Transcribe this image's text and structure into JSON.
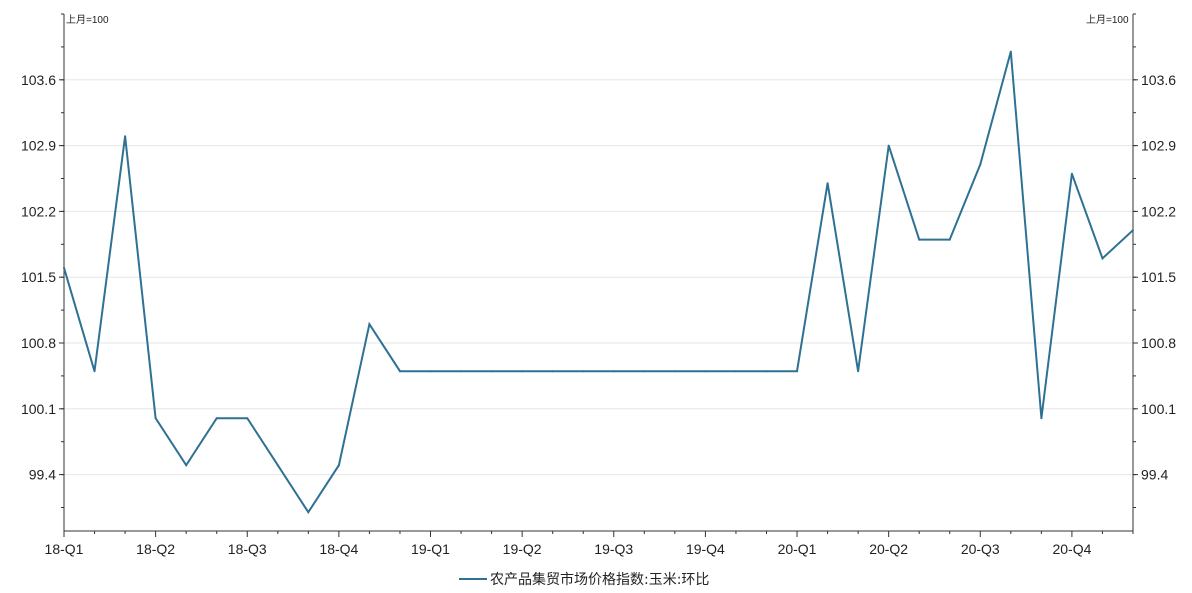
{
  "chart_data": {
    "type": "line",
    "unit_left": "上月=100",
    "unit_right": "上月=100",
    "x_tick_labels": [
      "18-Q1",
      "18-Q2",
      "18-Q3",
      "18-Q4",
      "19-Q1",
      "19-Q2",
      "19-Q3",
      "19-Q4",
      "20-Q1",
      "20-Q2",
      "20-Q3",
      "20-Q4"
    ],
    "y_ticks": [
      99.4,
      100.1,
      100.8,
      101.5,
      102.2,
      102.9,
      103.6
    ],
    "y_tick_labels": [
      "99.4",
      "100.1",
      "100.8",
      "101.5",
      "102.2",
      "102.9",
      "103.6"
    ],
    "ylim": [
      98.8,
      104.3
    ],
    "grid": true,
    "legend_position": "bottom-center",
    "series": [
      {
        "name": "农产品集贸市场价格指数:玉米:环比",
        "color": "#2e7193",
        "values": [
          101.6,
          100.5,
          103.0,
          100.0,
          99.5,
          100.0,
          100.0,
          99.5,
          99.0,
          99.5,
          101.0,
          100.5,
          100.5,
          100.5,
          100.5,
          100.5,
          100.5,
          100.5,
          100.5,
          100.5,
          100.5,
          100.5,
          100.5,
          100.5,
          100.5,
          102.5,
          100.5,
          102.9,
          101.9,
          101.9,
          102.7,
          103.9,
          100.0,
          102.6,
          101.7,
          102.0
        ]
      }
    ]
  }
}
